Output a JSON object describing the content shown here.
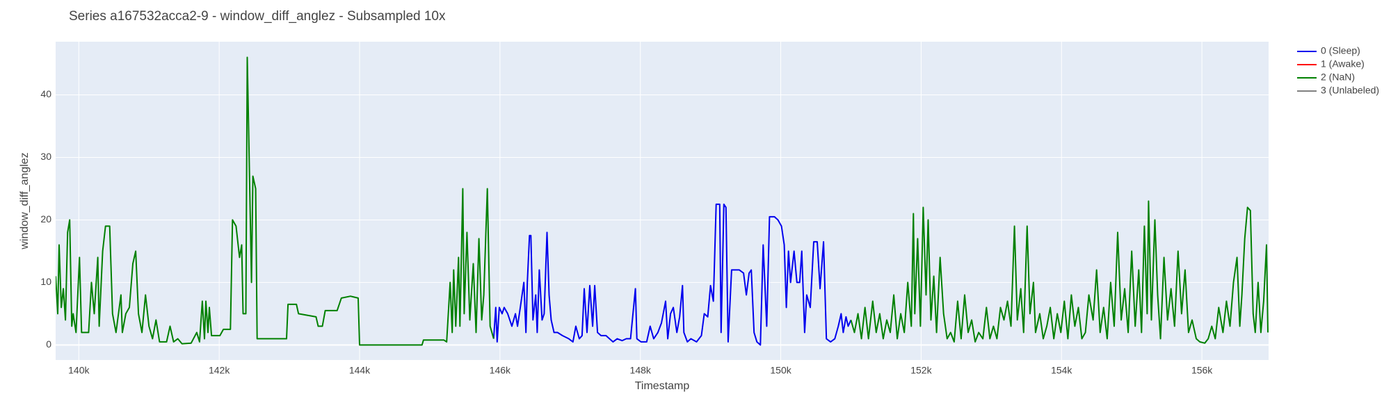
{
  "chart_data": {
    "type": "line",
    "title": "Series a167532acca2-9 - window_diff_anglez - Subsampled 10x",
    "x_label": "Timestamp",
    "y_label": "window_diff_anglez",
    "xlim": [
      139670,
      156950
    ],
    "ylim": [
      -2.4,
      48.5
    ],
    "xticks": [
      {
        "value": 140000,
        "label": "140k"
      },
      {
        "value": 142000,
        "label": "142k"
      },
      {
        "value": 144000,
        "label": "144k"
      },
      {
        "value": 146000,
        "label": "146k"
      },
      {
        "value": 148000,
        "label": "148k"
      },
      {
        "value": 150000,
        "label": "150k"
      },
      {
        "value": 152000,
        "label": "152k"
      },
      {
        "value": 154000,
        "label": "154k"
      },
      {
        "value": 156000,
        "label": "156k"
      }
    ],
    "yticks": [
      0,
      10,
      20,
      30,
      40
    ],
    "grid": true,
    "legend": "right",
    "series": [
      {
        "name": "0 (Sleep)",
        "color": "#0000ee",
        "x": [
          145910,
          145940,
          145960,
          145990,
          146030,
          146060,
          146110,
          146170,
          146220,
          146250,
          146290,
          146340,
          146370,
          146390,
          146420,
          146440,
          146470,
          146510,
          146530,
          146560,
          146600,
          146630,
          146670,
          146700,
          146730,
          146770,
          146820,
          146890,
          146980,
          147040,
          147080,
          147130,
          147170,
          147200,
          147240,
          147280,
          147320,
          147350,
          147390,
          147440,
          147510,
          147560,
          147610,
          147670,
          147740,
          147800,
          147860,
          147930,
          147950,
          148010,
          148090,
          148140,
          148190,
          148250,
          148300,
          148360,
          148390,
          148430,
          148470,
          148520,
          148560,
          148600,
          148620,
          148670,
          148720,
          148800,
          148870,
          148910,
          148960,
          149000,
          149040,
          149080,
          149130,
          149150,
          149190,
          149220,
          149250,
          149300,
          149410,
          149470,
          149510,
          149550,
          149580,
          149620,
          149660,
          149710,
          149750,
          149800,
          149840,
          149910,
          149960,
          150010,
          150050,
          150080,
          150110,
          150140,
          150190,
          150230,
          150270,
          150300,
          150340,
          150370,
          150420,
          150470,
          150520,
          150560,
          150610,
          150650,
          150710,
          150770,
          150820,
          150860,
          150890,
          150930,
          150960,
          151000
        ],
        "values": [
          1,
          6,
          0.5,
          6,
          5,
          6,
          5,
          3,
          5,
          3,
          6,
          10,
          2,
          10,
          17.5,
          17.5,
          4,
          8,
          2,
          12,
          4,
          5,
          18,
          8,
          4,
          2,
          2,
          1.5,
          1,
          0.5,
          3,
          1,
          1.5,
          9,
          2,
          9.5,
          3,
          9.5,
          2,
          1.5,
          1.5,
          1,
          0.5,
          1,
          0.7,
          1,
          1,
          9,
          1,
          0.5,
          0.5,
          3,
          1,
          2,
          3.5,
          7,
          1,
          5,
          6,
          2,
          4.5,
          9.5,
          2,
          0.5,
          1,
          0.5,
          1.5,
          5,
          4.5,
          9.5,
          7,
          22.5,
          22.5,
          2,
          22.5,
          22,
          0.5,
          12,
          12,
          11.5,
          8,
          11.5,
          12,
          2,
          0.5,
          0,
          16,
          3,
          20.5,
          20.5,
          20,
          19,
          16,
          6,
          15,
          10,
          15,
          10,
          10,
          15,
          2,
          8,
          6,
          16.5,
          16.5,
          9,
          16.5,
          1,
          0.5,
          1,
          3,
          5,
          2,
          4.5,
          3,
          4
        ]
      },
      {
        "name": "1 (Awake)",
        "color": "#ff0000",
        "x": [],
        "values": []
      },
      {
        "name": "2 (NaN)",
        "color": "#008000",
        "x": [
          139670,
          139700,
          139720,
          139750,
          139780,
          139810,
          139840,
          139870,
          139900,
          139920,
          139960,
          140010,
          140040,
          140080,
          140140,
          140180,
          140220,
          140270,
          140290,
          140340,
          140380,
          140440,
          140480,
          140530,
          140600,
          140620,
          140670,
          140720,
          140770,
          140810,
          140850,
          140900,
          140950,
          141000,
          141050,
          141100,
          141150,
          141250,
          141300,
          141350,
          141410,
          141470,
          141600,
          141680,
          141720,
          141760,
          141790,
          141810,
          141840,
          141860,
          141890,
          142010,
          142060,
          142160,
          142190,
          142240,
          142290,
          142320,
          142340,
          142380,
          142400,
          142430,
          142460,
          142480,
          142520,
          142540,
          142740,
          142960,
          142980,
          143100,
          143130,
          143380,
          143410,
          143470,
          143510,
          143680,
          143740,
          143870,
          143980,
          144000,
          144890,
          144910,
          145200,
          145240,
          145290,
          145320,
          145340,
          145370,
          145410,
          145430,
          145470,
          145490,
          145530,
          145570,
          145620,
          145660,
          145700,
          145740,
          145770,
          145820,
          145860,
          145910,
          null,
          151000,
          151050,
          151100,
          151150,
          151200,
          151250,
          151310,
          151360,
          151410,
          151460,
          151510,
          151560,
          151610,
          151660,
          151710,
          151760,
          151810,
          151860,
          151890,
          151910,
          151950,
          151990,
          152030,
          152070,
          152100,
          152140,
          152180,
          152220,
          152270,
          152320,
          152370,
          152420,
          152470,
          152520,
          152570,
          152620,
          152670,
          152720,
          152770,
          152820,
          152880,
          152930,
          152980,
          153030,
          153080,
          153130,
          153180,
          153230,
          153280,
          153330,
          153370,
          153420,
          153460,
          153510,
          153550,
          153600,
          153630,
          153690,
          153740,
          153790,
          153840,
          153890,
          153940,
          153990,
          154040,
          154090,
          154140,
          154190,
          154240,
          154290,
          154340,
          154390,
          154450,
          154500,
          154550,
          154600,
          154650,
          154700,
          154750,
          154800,
          154850,
          154900,
          154950,
          155000,
          155050,
          155100,
          155140,
          155180,
          155220,
          155240,
          155280,
          155330,
          155370,
          155410,
          155460,
          155510,
          155560,
          155610,
          155660,
          155710,
          155760,
          155810,
          155860,
          155920,
          155970,
          156040,
          156090,
          156140,
          156190,
          156240,
          156300,
          156350,
          156400,
          156450,
          156500,
          156540,
          156570,
          156610,
          156650,
          156690,
          156730,
          156760,
          156800,
          156840,
          156880,
          156920,
          156940
        ],
        "values": [
          11,
          5,
          16,
          6,
          9,
          4,
          18,
          20,
          3,
          5,
          2,
          14,
          2,
          2,
          2,
          10,
          5,
          14,
          3,
          15,
          19,
          19,
          5,
          2,
          8,
          2,
          5,
          6,
          13,
          15,
          5,
          2,
          8,
          3,
          1,
          4,
          0.5,
          0.5,
          3,
          0.5,
          1,
          0.2,
          0.3,
          2,
          0.5,
          7,
          1,
          7,
          2,
          6,
          1.5,
          1.5,
          2.5,
          2.5,
          20,
          19,
          14,
          16,
          5,
          5,
          46,
          28,
          10,
          27,
          25,
          1,
          1,
          1,
          6.5,
          6.5,
          5,
          4.5,
          3,
          3,
          5.5,
          5.5,
          7.5,
          7.8,
          7.5,
          0,
          0,
          0.8,
          0.8,
          0.5,
          10,
          2,
          12,
          3,
          14,
          3,
          25,
          5,
          18,
          4,
          13,
          2,
          17,
          4,
          8,
          25,
          3,
          1,
          null,
          4,
          2,
          5,
          1,
          6,
          1,
          7,
          2,
          5,
          1,
          4,
          2,
          8,
          1,
          5,
          2,
          10,
          3,
          21,
          5,
          17,
          3,
          22,
          8,
          20,
          4,
          11,
          2,
          14,
          5,
          1,
          2,
          0.5,
          7,
          1,
          8,
          2,
          4,
          0.5,
          2,
          1,
          6,
          1,
          3,
          1,
          6,
          4,
          7,
          3,
          19,
          4,
          9,
          2,
          19,
          5,
          10,
          2,
          5,
          1,
          3,
          6,
          1,
          5,
          2,
          7,
          1,
          8,
          3,
          6,
          1,
          2,
          8,
          4,
          12,
          2,
          6,
          1,
          10,
          3,
          18,
          4,
          9,
          2,
          15,
          3,
          12,
          2,
          19,
          5,
          23,
          4,
          20,
          8,
          1,
          14,
          4,
          9,
          3,
          15,
          5,
          12,
          2,
          4,
          1,
          0.5,
          0.3,
          1,
          3,
          1,
          6,
          2,
          7,
          3,
          10,
          14,
          3,
          8,
          17,
          22,
          21.5,
          5,
          2,
          10,
          2,
          7,
          16,
          2
        ]
      },
      {
        "name": "3 (Unlabeled)",
        "color": "#808080",
        "x": [],
        "values": []
      }
    ]
  }
}
